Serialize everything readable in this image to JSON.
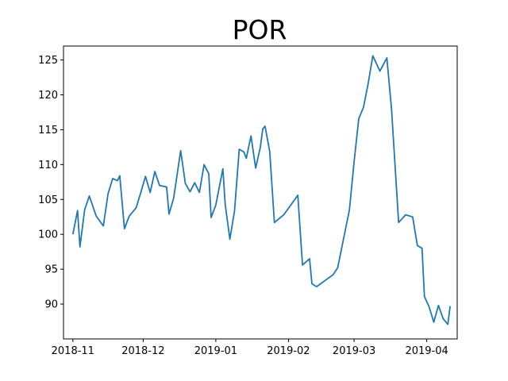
{
  "chart_data": {
    "type": "line",
    "title": "POR",
    "xlabel": "",
    "ylabel": "",
    "x_axis_type": "date",
    "xlim": [
      "2018-10-28",
      "2019-04-14"
    ],
    "ylim": [
      85,
      127
    ],
    "x_ticks": [
      "2018-11-01",
      "2018-12-01",
      "2019-01-01",
      "2019-02-01",
      "2019-03-01",
      "2019-04-01"
    ],
    "x_tick_labels": [
      "2018-11",
      "2018-12",
      "2019-01",
      "2019-02",
      "2019-03",
      "2019-04"
    ],
    "y_ticks": [
      90,
      95,
      100,
      105,
      110,
      115,
      120,
      125
    ],
    "y_tick_labels": [
      "90",
      "95",
      "100",
      "105",
      "110",
      "115",
      "120",
      "125"
    ],
    "grid": false,
    "series": [
      {
        "color": "#1f77b4",
        "points": [
          [
            "2018-11-01",
            100.0
          ],
          [
            "2018-11-03",
            103.4
          ],
          [
            "2018-11-04",
            98.2
          ],
          [
            "2018-11-06",
            103.5
          ],
          [
            "2018-11-08",
            105.5
          ],
          [
            "2018-11-11",
            102.6
          ],
          [
            "2018-11-14",
            101.2
          ],
          [
            "2018-11-16",
            105.8
          ],
          [
            "2018-11-18",
            108.0
          ],
          [
            "2018-11-20",
            107.7
          ],
          [
            "2018-11-21",
            108.4
          ],
          [
            "2018-11-23",
            100.8
          ],
          [
            "2018-11-25",
            102.6
          ],
          [
            "2018-11-28",
            103.8
          ],
          [
            "2018-11-30",
            106.0
          ],
          [
            "2018-12-02",
            108.3
          ],
          [
            "2018-12-04",
            106.0
          ],
          [
            "2018-12-06",
            109.0
          ],
          [
            "2018-12-08",
            107.0
          ],
          [
            "2018-12-11",
            106.8
          ],
          [
            "2018-12-12",
            102.9
          ],
          [
            "2018-12-14",
            105.2
          ],
          [
            "2018-12-17",
            112.0
          ],
          [
            "2018-12-19",
            107.3
          ],
          [
            "2018-12-21",
            106.1
          ],
          [
            "2018-12-23",
            107.4
          ],
          [
            "2018-12-25",
            106.0
          ],
          [
            "2018-12-27",
            110.0
          ],
          [
            "2018-12-29",
            108.7
          ],
          [
            "2018-12-30",
            102.4
          ],
          [
            "2019-01-01",
            104.2
          ],
          [
            "2019-01-04",
            109.4
          ],
          [
            "2019-01-05",
            104.3
          ],
          [
            "2019-01-07",
            99.3
          ],
          [
            "2019-01-09",
            103.4
          ],
          [
            "2019-01-11",
            112.2
          ],
          [
            "2019-01-13",
            111.8
          ],
          [
            "2019-01-14",
            110.9
          ],
          [
            "2019-01-16",
            114.1
          ],
          [
            "2019-01-18",
            109.5
          ],
          [
            "2019-01-20",
            112.5
          ],
          [
            "2019-01-21",
            115.1
          ],
          [
            "2019-01-22",
            115.5
          ],
          [
            "2019-01-24",
            111.9
          ],
          [
            "2019-01-26",
            101.7
          ],
          [
            "2019-01-30",
            102.8
          ],
          [
            "2019-02-05",
            105.6
          ],
          [
            "2019-02-07",
            95.6
          ],
          [
            "2019-02-10",
            96.5
          ],
          [
            "2019-02-11",
            92.9
          ],
          [
            "2019-02-13",
            92.5
          ],
          [
            "2019-02-20",
            94.2
          ],
          [
            "2019-02-22",
            95.2
          ],
          [
            "2019-02-27",
            103.5
          ],
          [
            "2019-03-01",
            110.4
          ],
          [
            "2019-03-03",
            116.6
          ],
          [
            "2019-03-05",
            118.2
          ],
          [
            "2019-03-07",
            121.6
          ],
          [
            "2019-03-09",
            125.6
          ],
          [
            "2019-03-12",
            123.4
          ],
          [
            "2019-03-15",
            125.3
          ],
          [
            "2019-03-17",
            117.9
          ],
          [
            "2019-03-20",
            101.7
          ],
          [
            "2019-03-23",
            102.8
          ],
          [
            "2019-03-26",
            102.5
          ],
          [
            "2019-03-28",
            98.4
          ],
          [
            "2019-03-30",
            98.0
          ],
          [
            "2019-03-31",
            91.1
          ],
          [
            "2019-04-02",
            89.6
          ],
          [
            "2019-04-04",
            87.4
          ],
          [
            "2019-04-06",
            89.8
          ],
          [
            "2019-04-08",
            87.9
          ],
          [
            "2019-04-10",
            87.1
          ],
          [
            "2019-04-11",
            89.7
          ]
        ]
      }
    ]
  }
}
